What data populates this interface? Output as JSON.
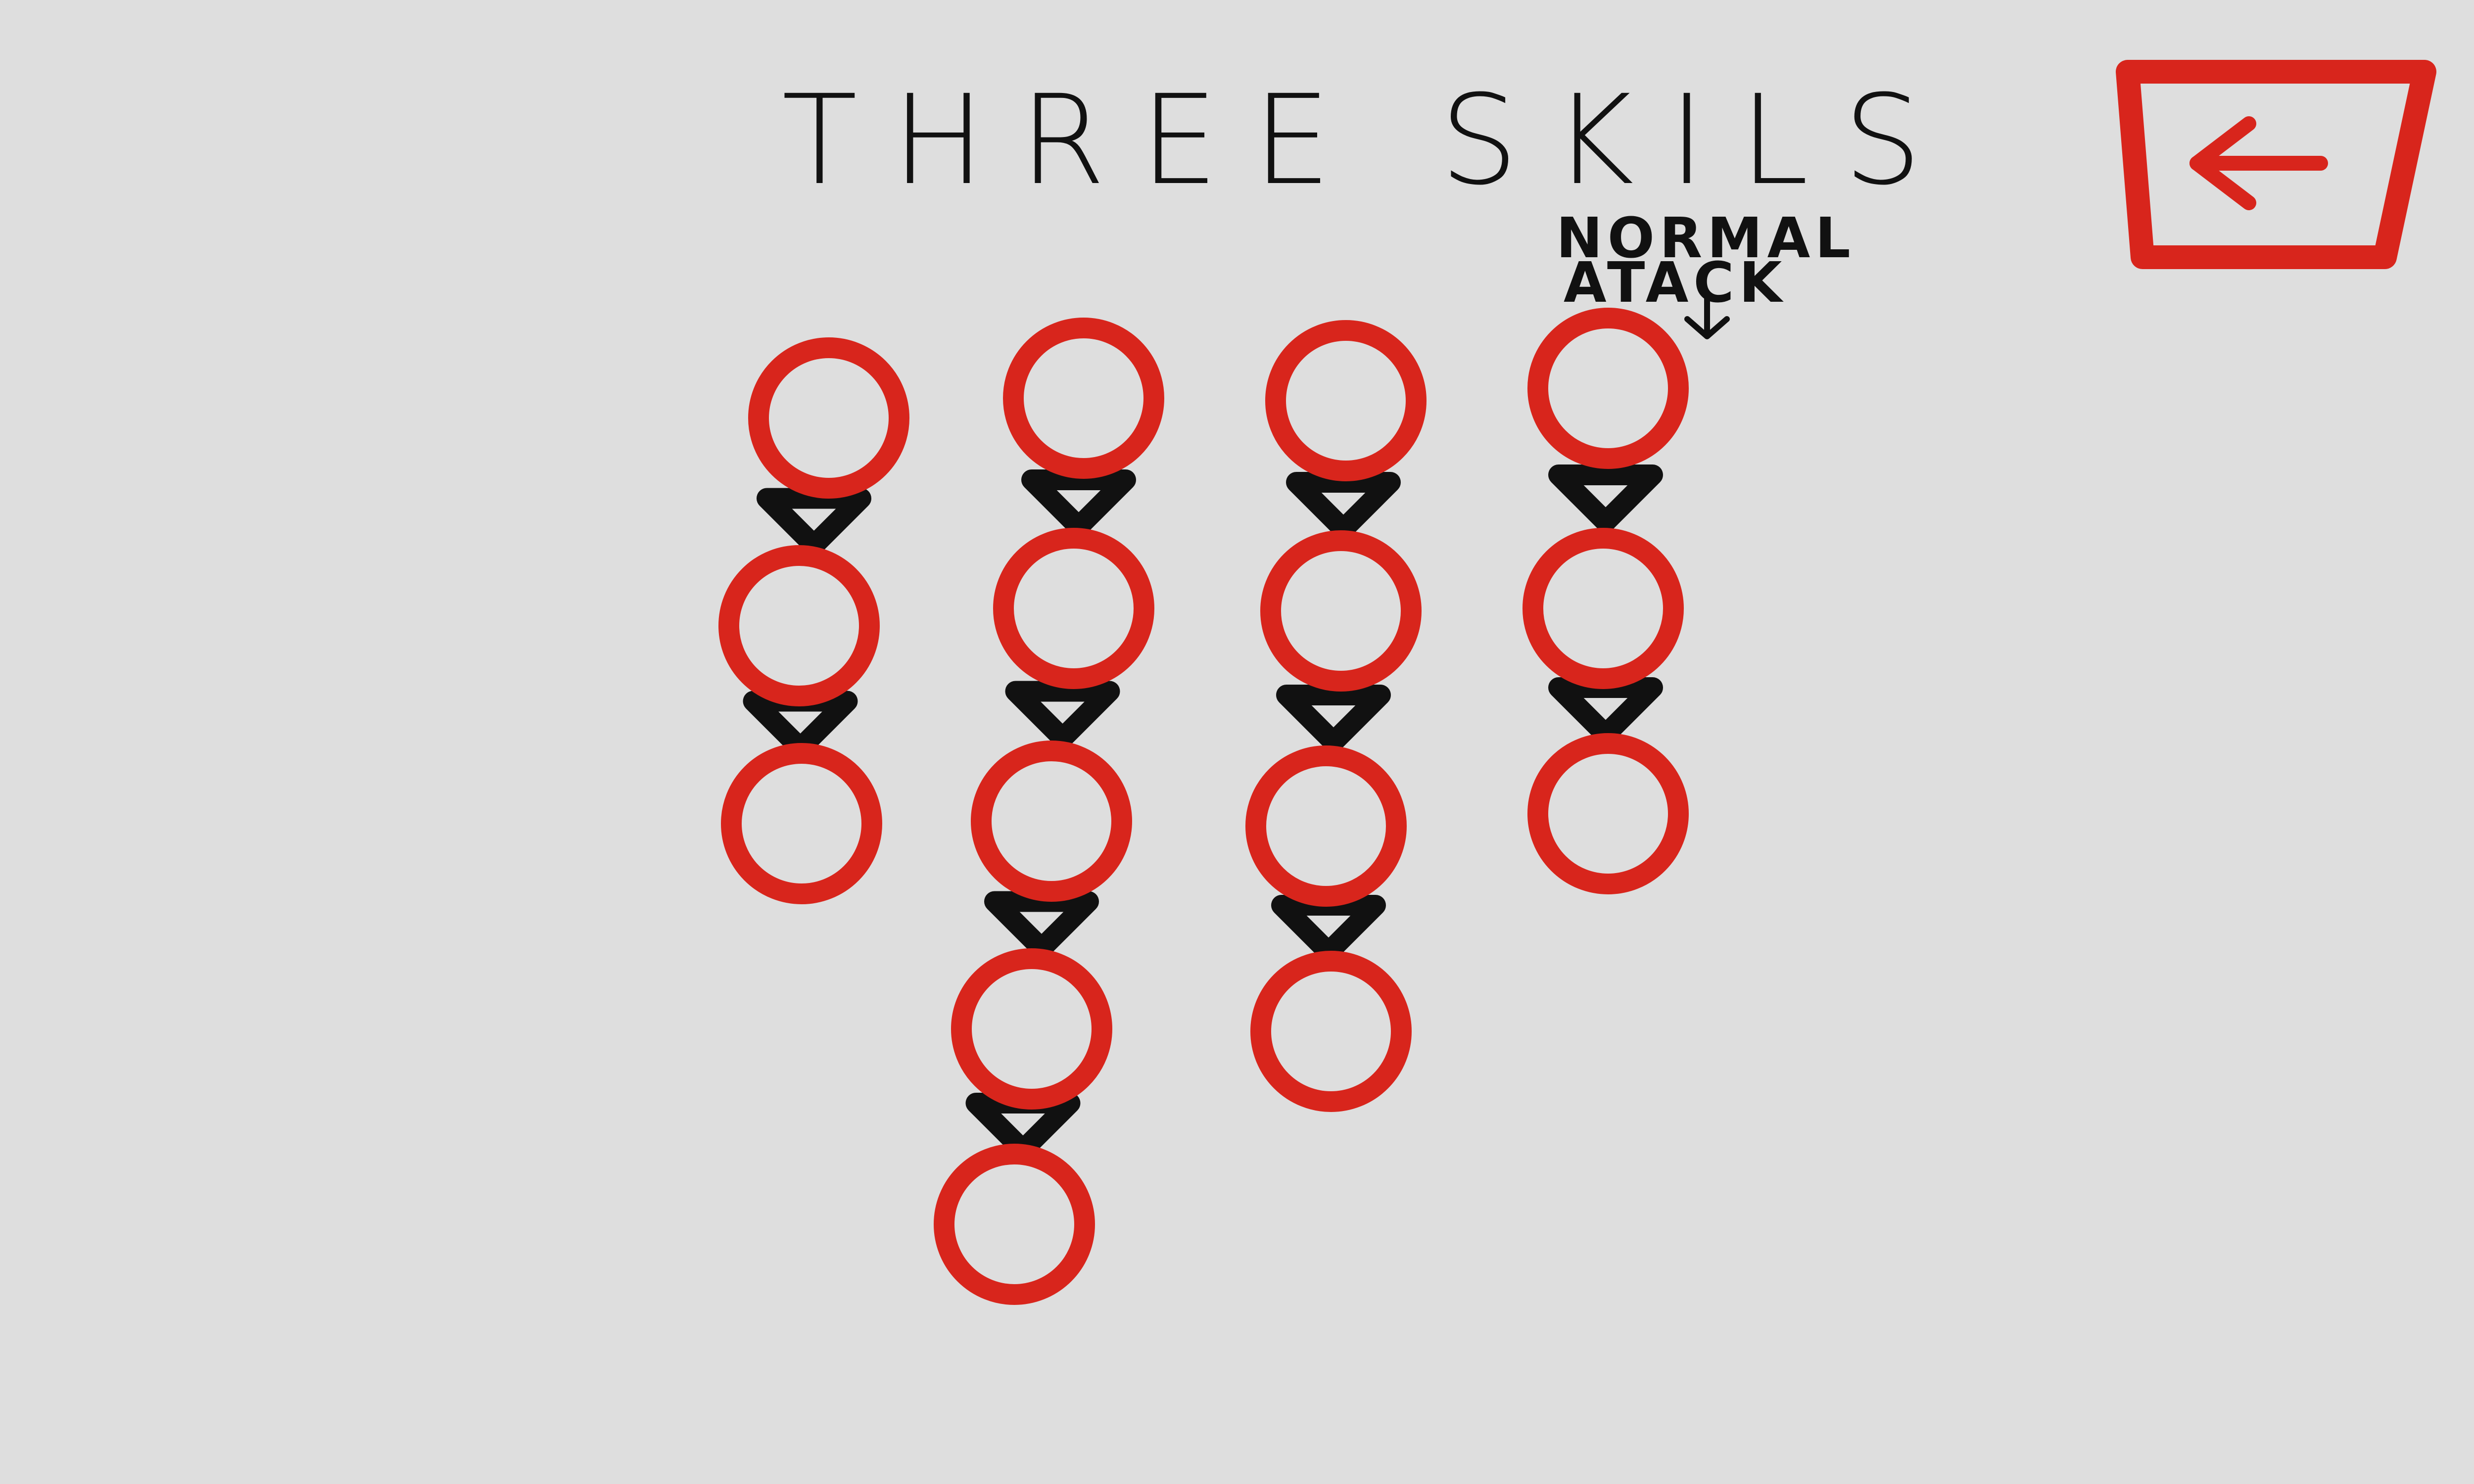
{
  "screen": {
    "title": "THREE SKILS",
    "background": "#dedede",
    "colors": {
      "ring": "#d8251c",
      "connector": "#111111",
      "text": "#111111"
    }
  },
  "back_button": {
    "icon": "left-arrow-icon"
  },
  "normal_attack_label": {
    "line1": "NORMAL",
    "line2": "ATACK"
  },
  "skill_columns": [
    {
      "id": "skill-1",
      "nodes": 3
    },
    {
      "id": "skill-2",
      "nodes": 5
    },
    {
      "id": "skill-3",
      "nodes": 4
    },
    {
      "id": "normal-attack",
      "nodes": 3
    }
  ]
}
